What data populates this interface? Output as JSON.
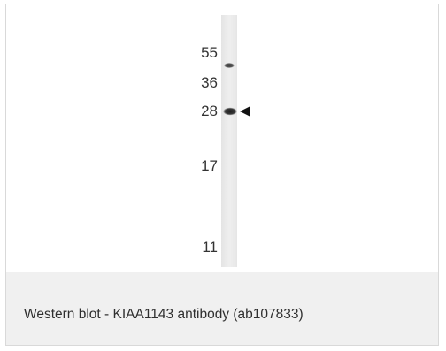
{
  "blot": {
    "markers": [
      "55",
      "36",
      "28",
      "17",
      "11"
    ],
    "band_indicator": "arrowhead"
  },
  "caption": {
    "text": "Western blot - KIAA1143 antibody (ab107833)"
  },
  "colors": {
    "caption_background": "#f0f0f0",
    "border": "#d9d9d9",
    "lane": "#ececec",
    "band": "#2a2a2a"
  }
}
